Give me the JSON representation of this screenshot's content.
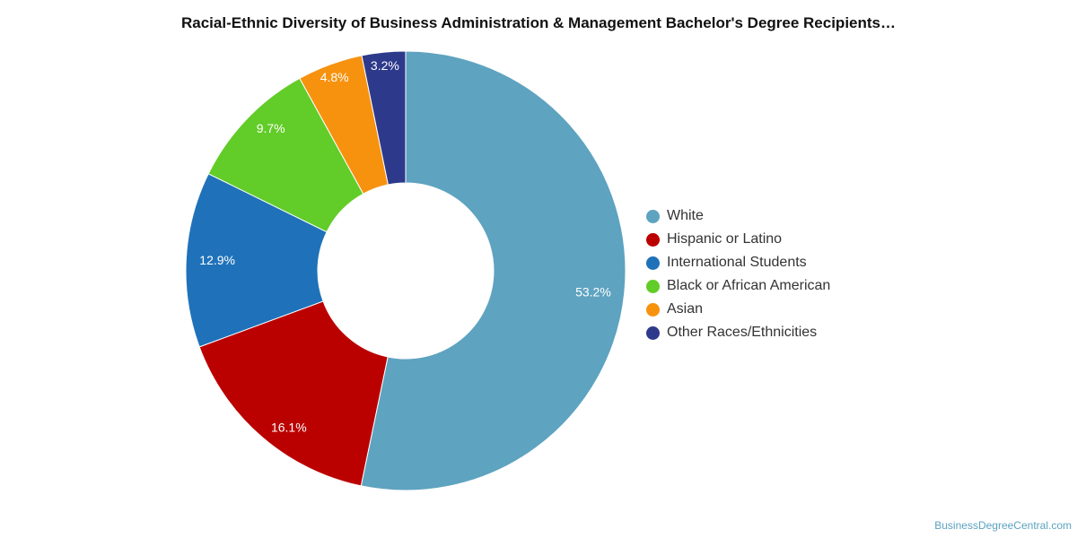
{
  "chart_data": {
    "type": "pie",
    "title": "Racial-Ethnic Diversity of Business Administration & Management Bachelor's Degree Recipients…",
    "categories": [
      "White",
      "Hispanic or Latino",
      "International Students",
      "Black or African American",
      "Asian",
      "Other Races/Ethnicities"
    ],
    "values": [
      53.2,
      16.1,
      12.9,
      9.7,
      4.8,
      3.2
    ],
    "value_labels": [
      "53.2%",
      "16.1%",
      "12.9%",
      "9.7%",
      "4.8%",
      "3.2%"
    ],
    "colors": [
      "#5ea3c0",
      "#bb0000",
      "#1f72b9",
      "#62cc28",
      "#f7920f",
      "#2d3a8c"
    ],
    "legend_position": "right",
    "donut": true
  },
  "source": "BusinessDegreeCentral.com"
}
